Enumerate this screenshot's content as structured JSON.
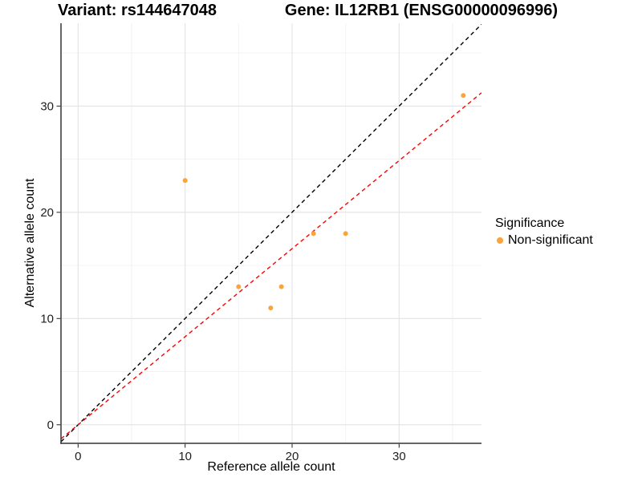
{
  "titles": {
    "variant": "Variant: rs144647048",
    "gene": "Gene: IL12RB1 (ENSG00000096996)"
  },
  "chart_data": {
    "type": "scatter",
    "xlabel": "Reference allele count",
    "ylabel": "Alternative allele count",
    "xlim": [
      -1.6,
      37.7
    ],
    "ylim": [
      -1.75,
      37.8
    ],
    "x_ticks": [
      0,
      10,
      20,
      30
    ],
    "y_ticks": [
      0,
      10,
      20,
      30
    ],
    "x_minor_ticks": [
      5,
      15,
      25,
      35
    ],
    "y_minor_ticks": [
      5,
      15,
      25,
      35
    ],
    "grid": "major-and-minor",
    "series": [
      {
        "name": "Non-significant",
        "color": "#FAA43A",
        "points": [
          [
            10,
            23
          ],
          [
            15,
            13
          ],
          [
            18,
            11
          ],
          [
            19,
            13
          ],
          [
            22,
            18
          ],
          [
            25,
            18
          ],
          [
            36,
            31
          ]
        ]
      }
    ],
    "lines": [
      {
        "name": "identity-line",
        "slope": 1,
        "intercept": 0,
        "color": "#000000",
        "style": "dashed"
      },
      {
        "name": "fit-line",
        "slope": 0.829,
        "intercept": 0,
        "color": "#FF0000",
        "style": "dashed"
      }
    ],
    "legend": {
      "title": "Significance",
      "position": "right",
      "items": [
        {
          "label": "Non-significant",
          "color": "#FAA43A",
          "marker": "circle"
        }
      ]
    },
    "colors": {
      "point": "#FAA43A",
      "identity_line": "#000000",
      "fit_line": "#FF0000",
      "grid_major": "#E3E3E3",
      "grid_minor": "#F1F1F1",
      "axis_line": "#333333",
      "tick_label": "#1F1F1F"
    }
  }
}
